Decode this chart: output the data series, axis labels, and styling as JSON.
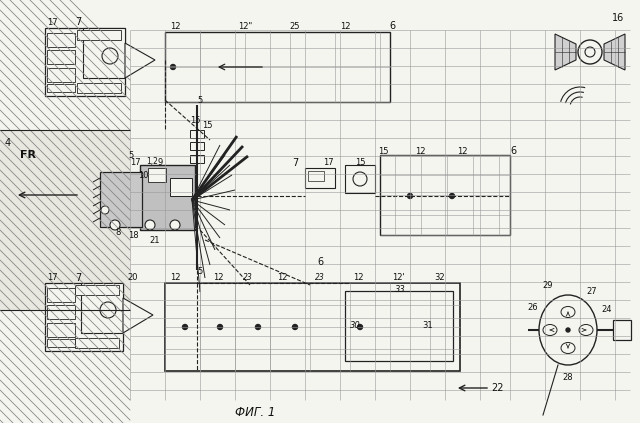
{
  "title": "ФИГ. 1",
  "bg_color": "#f5f5f0",
  "grid_color": "#999999",
  "line_color": "#222222",
  "label_color": "#111111",
  "field_hatch_color": "#aaaaaa"
}
